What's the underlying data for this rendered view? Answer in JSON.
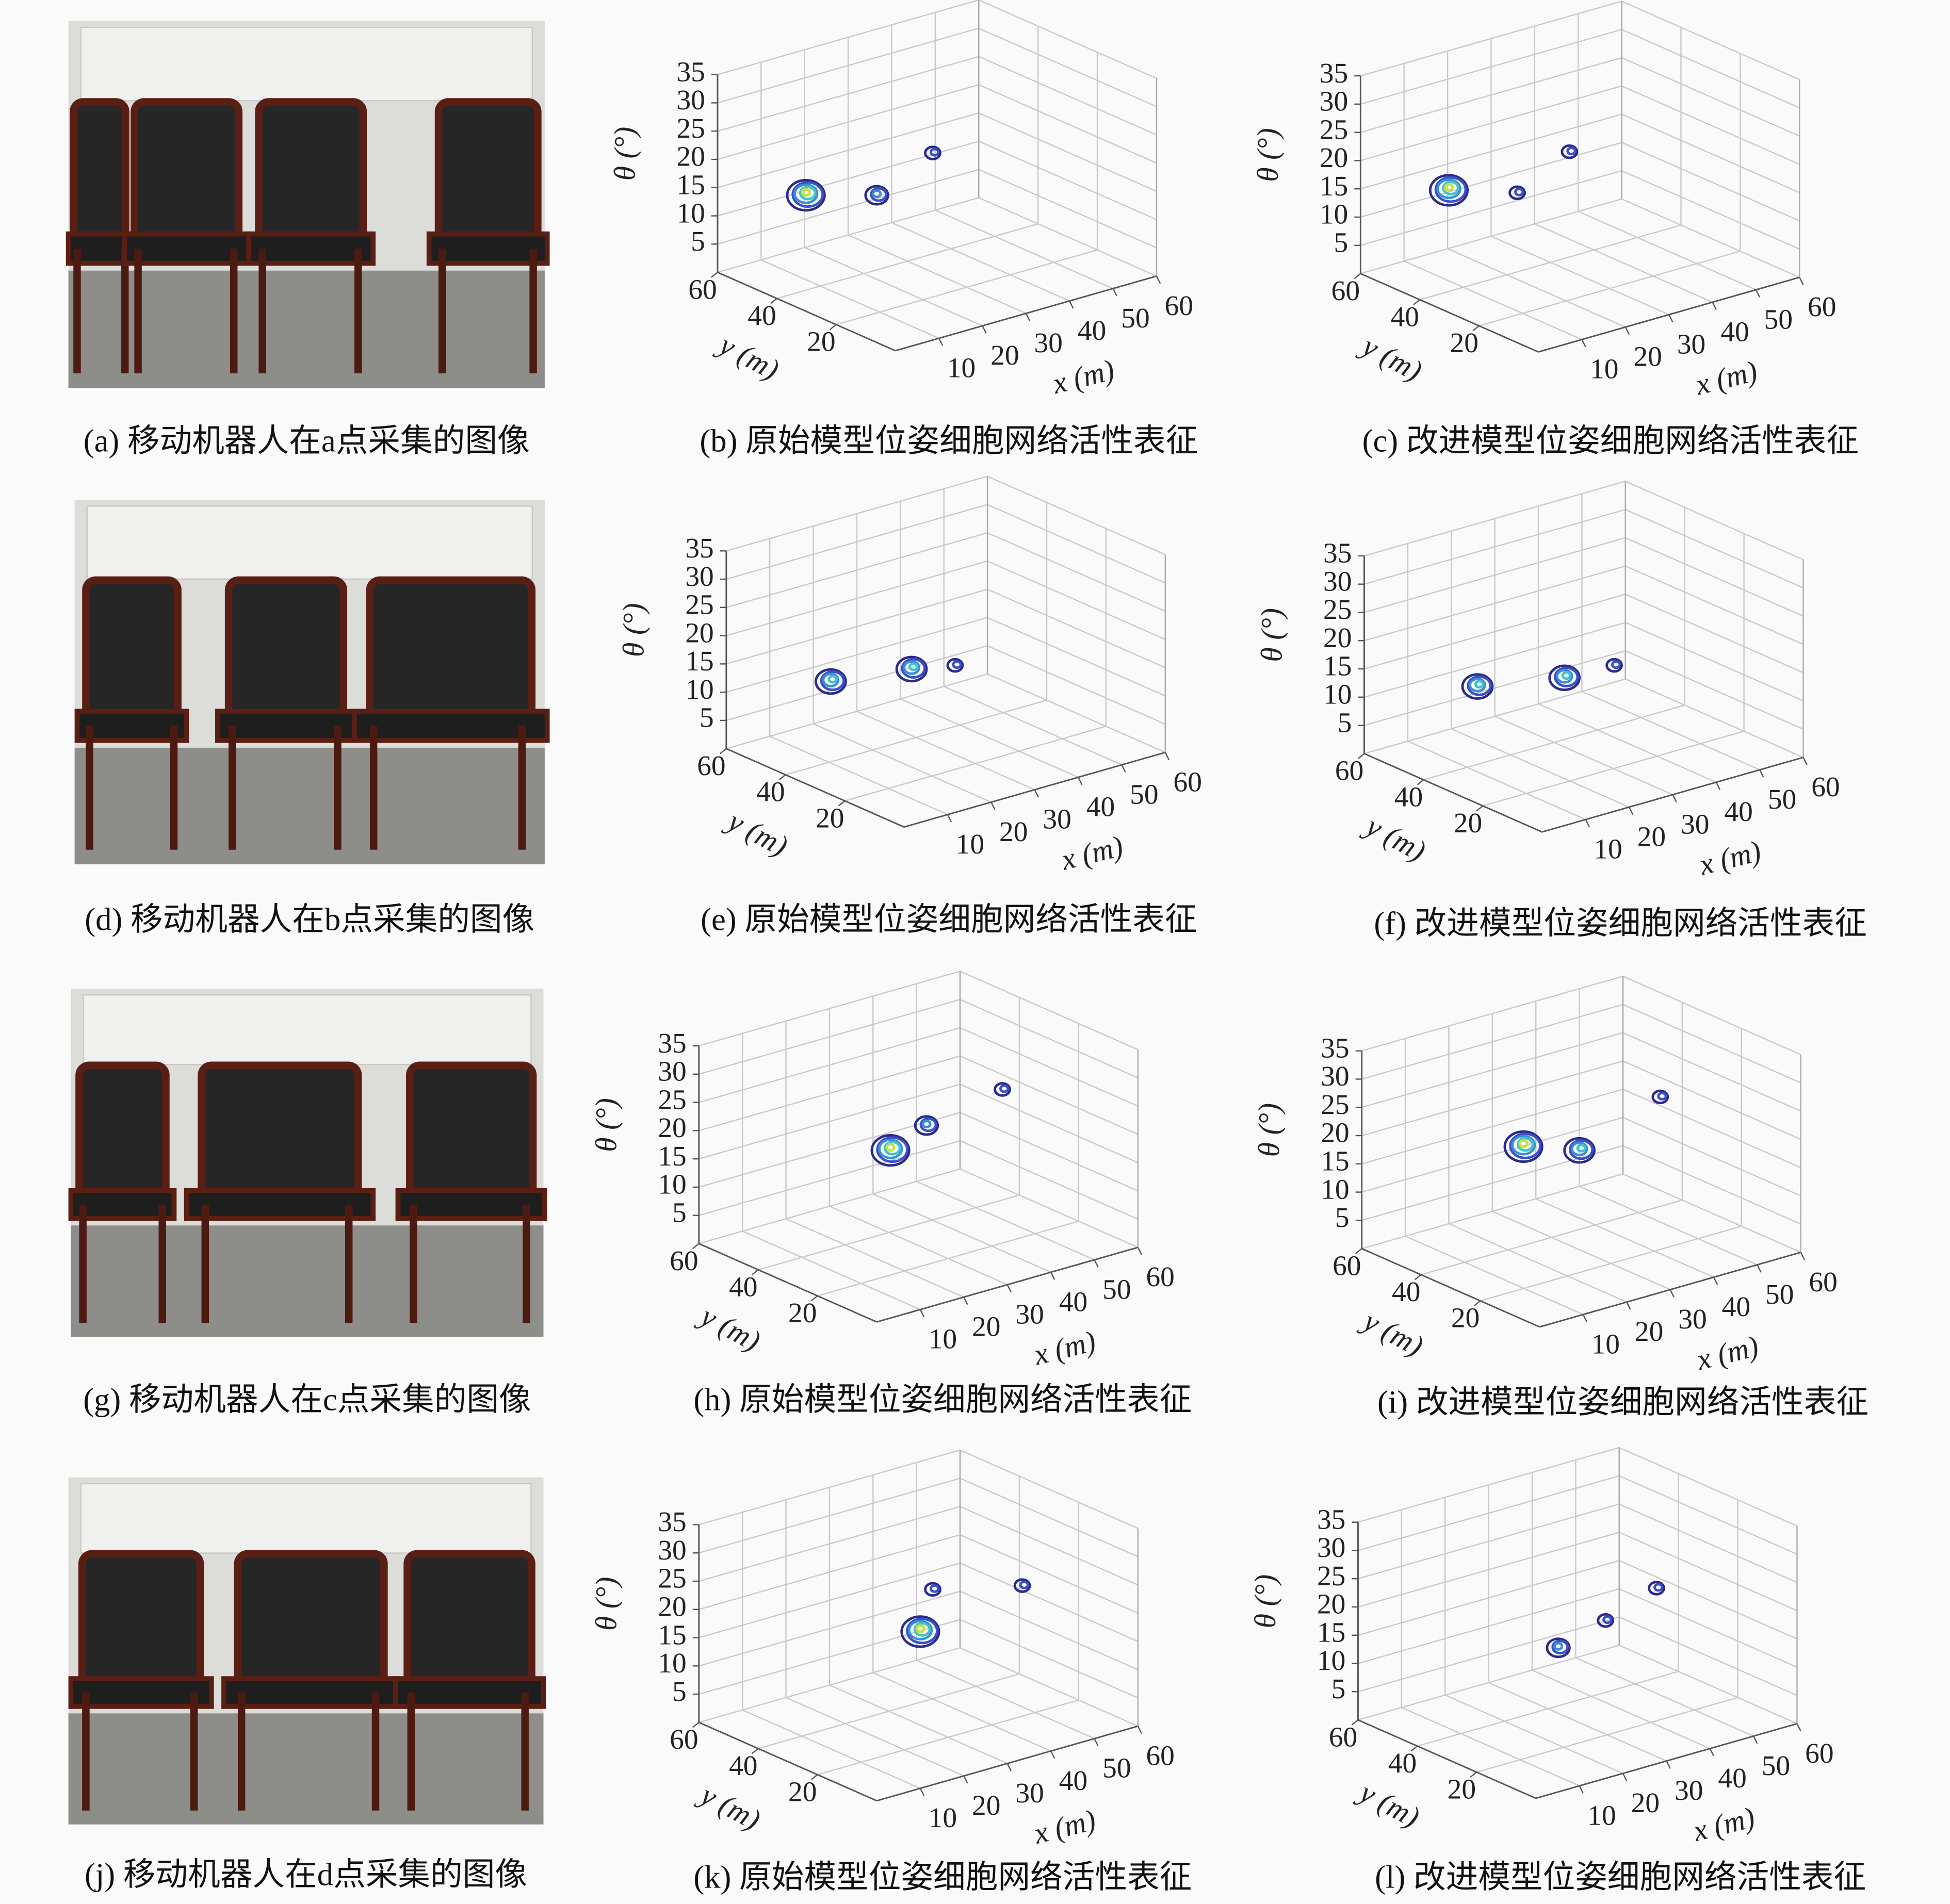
{
  "photos": [
    {
      "caption": "(a) 移动机器人在a点采集的图像"
    },
    {
      "caption": "(d) 移动机器人在b点采集的图像"
    },
    {
      "caption": "(g) 移动机器人在c点采集的图像"
    },
    {
      "caption": "(j) 移动机器人在d点采集的图像"
    }
  ],
  "chart_data": [
    {
      "type": "contour3d",
      "caption": "(b) 原始模型位姿细胞网络活性表征",
      "xlabel": "x (m)",
      "ylabel": "y (m)",
      "zlabel": "θ (°)",
      "xlim": [
        0,
        60
      ],
      "ylim": [
        0,
        60
      ],
      "zlim": [
        0,
        35
      ],
      "xticks": [
        10,
        20,
        30,
        40,
        50,
        60
      ],
      "yticks": [
        20,
        40,
        60
      ],
      "zticks": [
        5,
        10,
        15,
        20,
        25,
        30,
        35
      ],
      "grid": true
    },
    {
      "type": "contour3d",
      "caption": "(c) 改进模型位姿细胞网络活性表征",
      "xlabel": "x (m)",
      "ylabel": "y (m)",
      "zlabel": "θ (°)",
      "xlim": [
        0,
        60
      ],
      "ylim": [
        0,
        60
      ],
      "zlim": [
        0,
        35
      ],
      "xticks": [
        10,
        20,
        30,
        40,
        50,
        60
      ],
      "yticks": [
        20,
        40,
        60
      ],
      "zticks": [
        5,
        10,
        15,
        20,
        25,
        30,
        35
      ],
      "grid": true
    },
    {
      "type": "contour3d",
      "caption": "(e) 原始模型位姿细胞网络活性表征",
      "xlabel": "x (m)",
      "ylabel": "y (m)",
      "zlabel": "θ (°)",
      "xlim": [
        0,
        60
      ],
      "ylim": [
        0,
        60
      ],
      "zlim": [
        0,
        35
      ],
      "xticks": [
        10,
        20,
        30,
        40,
        50,
        60
      ],
      "yticks": [
        20,
        40,
        60
      ],
      "zticks": [
        5,
        10,
        15,
        20,
        25,
        30,
        35
      ],
      "grid": true
    },
    {
      "type": "contour3d",
      "caption": "(f) 改进模型位姿细胞网络活性表征",
      "xlabel": "x (m)",
      "ylabel": "y (m)",
      "zlabel": "θ (°)",
      "xlim": [
        0,
        60
      ],
      "ylim": [
        0,
        60
      ],
      "zlim": [
        0,
        35
      ],
      "xticks": [
        10,
        20,
        30,
        40,
        50,
        60
      ],
      "yticks": [
        20,
        40,
        60
      ],
      "zticks": [
        5,
        10,
        15,
        20,
        25,
        30,
        35
      ],
      "grid": true
    },
    {
      "type": "contour3d",
      "caption": "(h) 原始模型位姿细胞网络活性表征",
      "xlabel": "x (m)",
      "ylabel": "y (m)",
      "zlabel": "θ (°)",
      "xlim": [
        0,
        60
      ],
      "ylim": [
        0,
        60
      ],
      "zlim": [
        0,
        35
      ],
      "xticks": [
        10,
        20,
        30,
        40,
        50,
        60
      ],
      "yticks": [
        20,
        40,
        60
      ],
      "zticks": [
        5,
        10,
        15,
        20,
        25,
        30,
        35
      ],
      "grid": true
    },
    {
      "type": "contour3d",
      "caption": "(i) 改进模型位姿细胞网络活性表征",
      "xlabel": "x (m)",
      "ylabel": "y (m)",
      "zlabel": "θ (°)",
      "xlim": [
        0,
        60
      ],
      "ylim": [
        0,
        60
      ],
      "zlim": [
        0,
        35
      ],
      "xticks": [
        10,
        20,
        30,
        40,
        50,
        60
      ],
      "yticks": [
        20,
        40,
        60
      ],
      "zticks": [
        5,
        10,
        15,
        20,
        25,
        30,
        35
      ],
      "grid": true
    },
    {
      "type": "contour3d",
      "caption": "(k) 原始模型位姿细胞网络活性表征",
      "xlabel": "x (m)",
      "ylabel": "y (m)",
      "zlabel": "θ (°)",
      "xlim": [
        0,
        60
      ],
      "ylim": [
        0,
        60
      ],
      "zlim": [
        0,
        35
      ],
      "xticks": [
        10,
        20,
        30,
        40,
        50,
        60
      ],
      "yticks": [
        20,
        40,
        60
      ],
      "zticks": [
        5,
        10,
        15,
        20,
        25,
        30,
        35
      ],
      "grid": true
    },
    {
      "type": "contour3d",
      "caption": "(l) 改进模型位姿细胞网络活性表征",
      "xlabel": "x (m)",
      "ylabel": "y (m)",
      "zlabel": "θ (°)",
      "xlim": [
        0,
        60
      ],
      "ylim": [
        0,
        60
      ],
      "zlim": [
        0,
        35
      ],
      "xticks": [
        10,
        20,
        30,
        40,
        50,
        60
      ],
      "yticks": [
        20,
        40,
        60
      ],
      "zticks": [
        5,
        10,
        15,
        20,
        25,
        30,
        35
      ],
      "grid": true
    }
  ]
}
